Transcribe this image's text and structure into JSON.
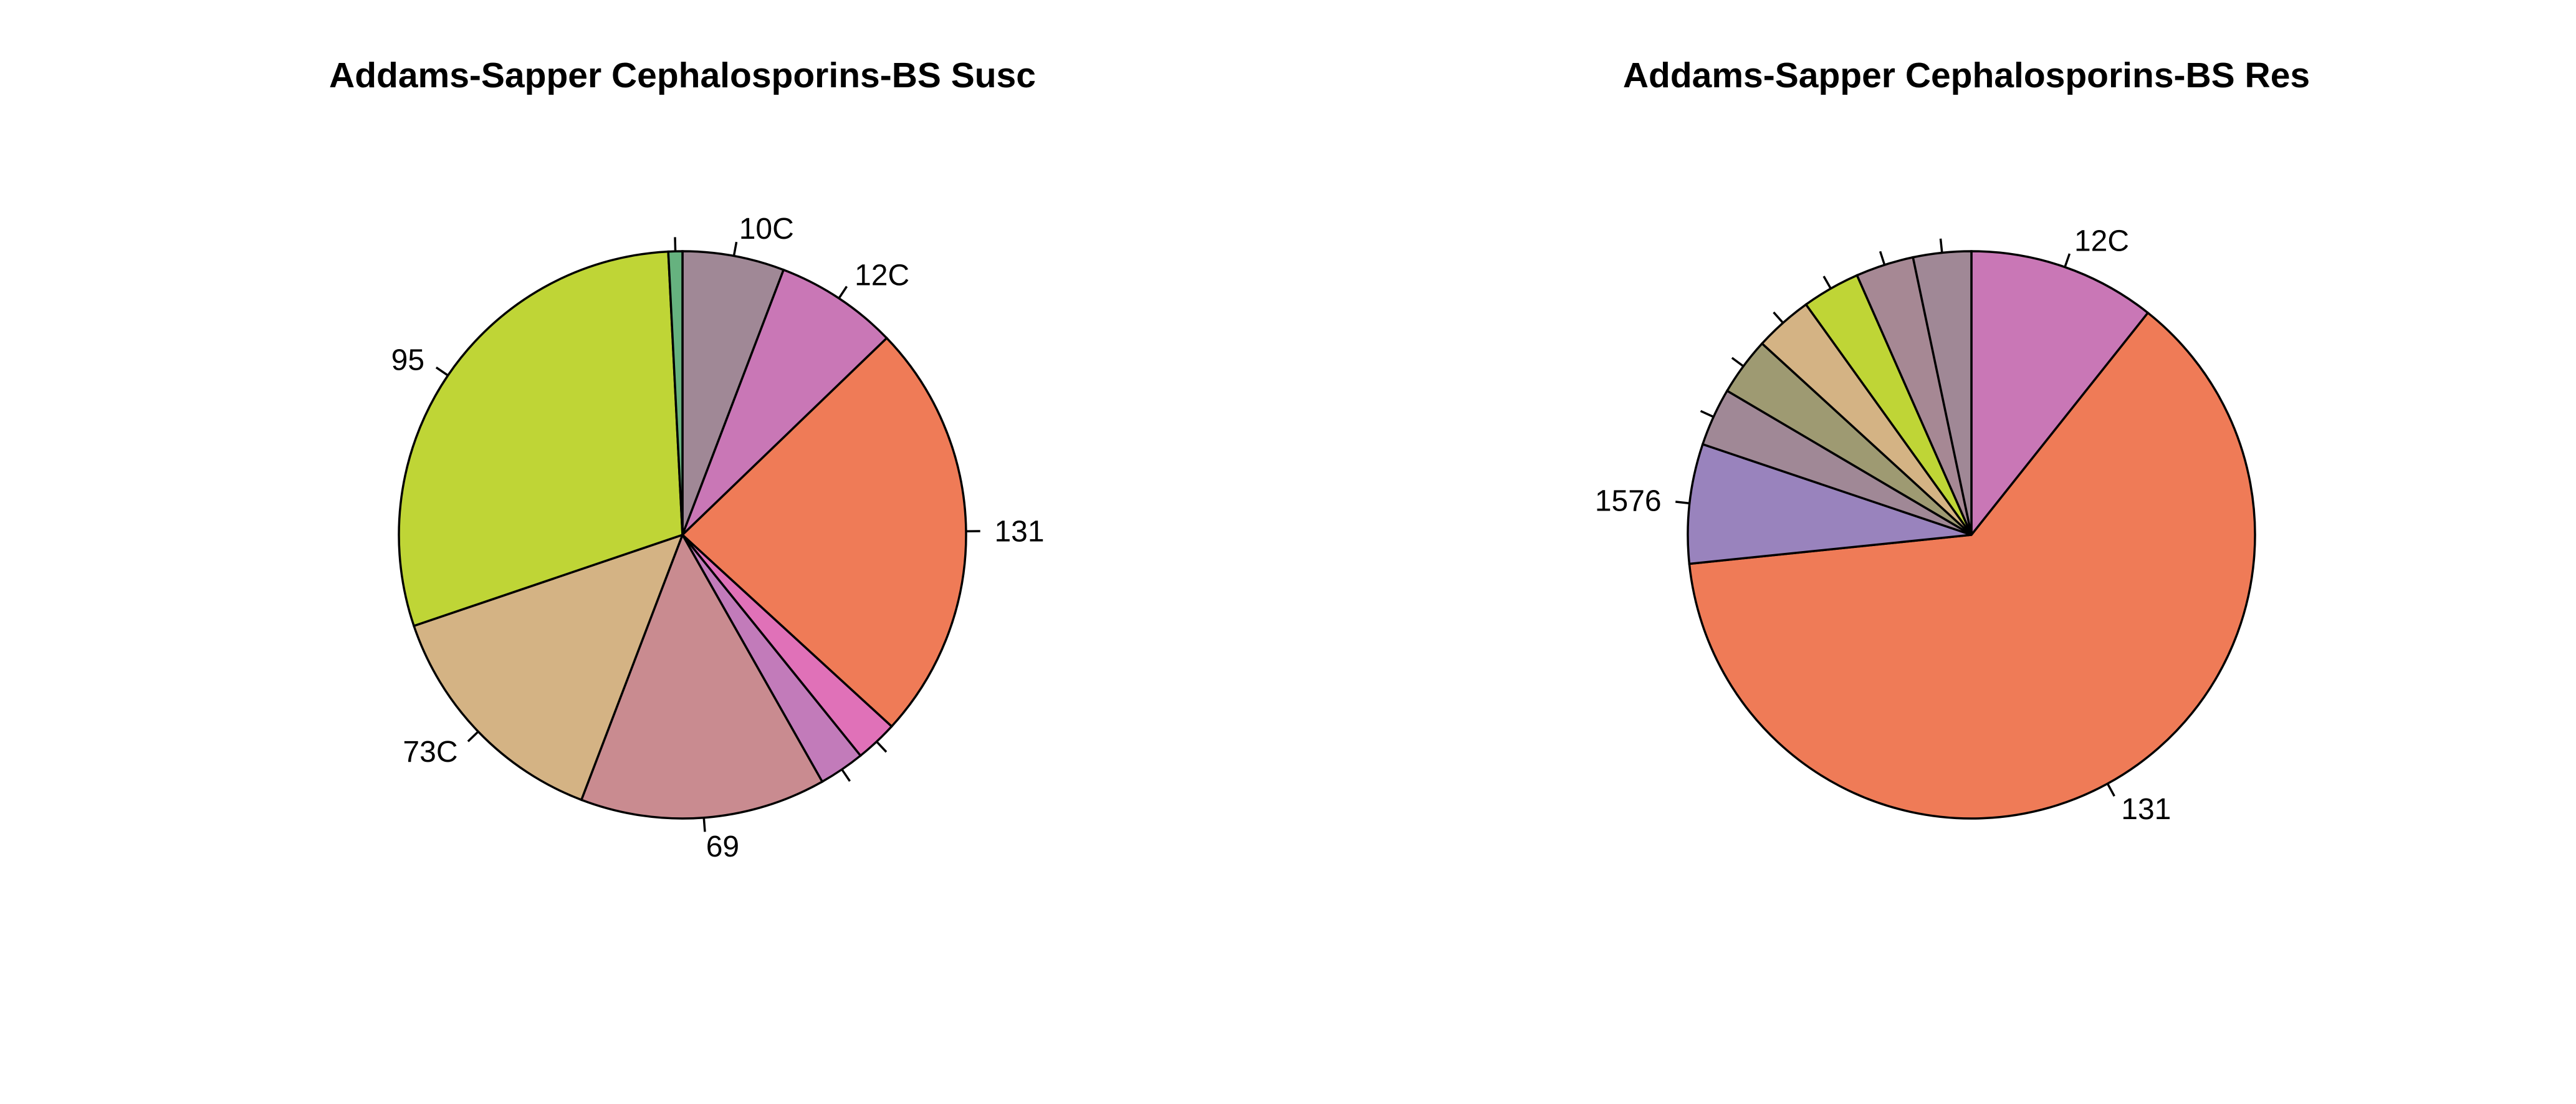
{
  "chart_data": [
    {
      "type": "pie",
      "title": "Addams-Sapper Cephalosporins-BS Susc",
      "start_angle_deg": 90,
      "direction": "clockwise",
      "slices": [
        {
          "label": "10C",
          "value": 5.8,
          "color": "#a08896"
        },
        {
          "label": "12C",
          "value": 7.0,
          "color": "#c977b6"
        },
        {
          "label": "131",
          "value": 24.0,
          "color": "#ef7b57"
        },
        {
          "label": "",
          "value": 2.4,
          "color": "#e071b8"
        },
        {
          "label": "",
          "value": 2.6,
          "color": "#c27bba"
        },
        {
          "label": "69",
          "value": 14.0,
          "color": "#c98b90"
        },
        {
          "label": "73C",
          "value": 14.0,
          "color": "#d4b384"
        },
        {
          "label": "95",
          "value": 29.4,
          "color": "#bfd536"
        },
        {
          "label": "",
          "value": 0.8,
          "color": "#66b27f"
        }
      ]
    },
    {
      "type": "pie",
      "title": "Addams-Sapper Cephalosporins-BS Res",
      "start_angle_deg": 90,
      "direction": "clockwise",
      "slices": [
        {
          "label": "12C",
          "value": 11.0,
          "color": "#c977b6"
        },
        {
          "label": "131",
          "value": 64.5,
          "color": "#ef7b57"
        },
        {
          "label": "1576",
          "value": 7.0,
          "color": "#9983bd"
        },
        {
          "label": "",
          "value": 3.4,
          "color": "#a08896"
        },
        {
          "label": "",
          "value": 3.4,
          "color": "#9e9a72"
        },
        {
          "label": "",
          "value": 3.4,
          "color": "#d4b384"
        },
        {
          "label": "",
          "value": 3.4,
          "color": "#bfd536"
        },
        {
          "label": "",
          "value": 3.4,
          "color": "#a68894"
        },
        {
          "label": "",
          "value": 3.4,
          "color": "#a08896"
        }
      ]
    }
  ]
}
